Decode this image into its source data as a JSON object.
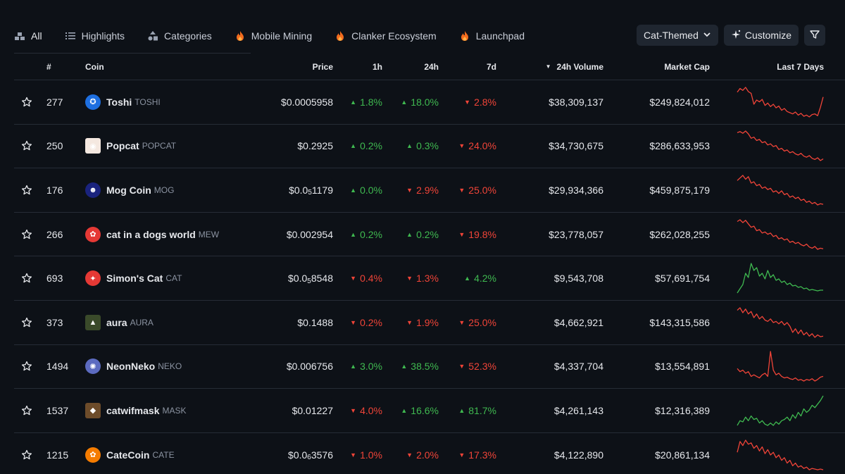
{
  "nav": {
    "tabs": [
      {
        "label": "All",
        "icon": "pyramid-blocks-icon"
      },
      {
        "label": "Highlights",
        "icon": "list-numbered-icon"
      },
      {
        "label": "Categories",
        "icon": "shapes-icon"
      },
      {
        "label": "Mobile Mining",
        "icon": "fire-icon"
      },
      {
        "label": "Clanker Ecosystem",
        "icon": "fire-icon"
      },
      {
        "label": "Launchpad",
        "icon": "fire-icon"
      }
    ],
    "category_select": "Cat-Themed",
    "customize_label": "Customize",
    "filter_icon": "filter-icon"
  },
  "table": {
    "headers": {
      "rank": "#",
      "coin": "Coin",
      "price": "Price",
      "h1": "1h",
      "h24": "24h",
      "d7": "7d",
      "volume": "24h Volume",
      "mcap": "Market Cap",
      "spark": "Last 7 Days"
    },
    "rows": [
      {
        "rank": "277",
        "name": "Toshi",
        "symbol": "TOSHI",
        "price_pre": "$0.0005958",
        "price_sub": "",
        "price_post": "",
        "h1": "1.8%",
        "h1_dir": "up",
        "h24": "18.0%",
        "h24_dir": "up",
        "d7": "2.8%",
        "d7_dir": "down",
        "volume": "$38,309,137",
        "mcap": "$249,824,012",
        "logo_color": "#1e6fe0",
        "logo_glyph": "✪",
        "spark_dir": "down",
        "spark": [
          60,
          66,
          63,
          68,
          61,
          58,
          40,
          47,
          44,
          48,
          38,
          42,
          36,
          40,
          34,
          37,
          30,
          33,
          28,
          26,
          24,
          27,
          22,
          25,
          20,
          22,
          19,
          23,
          24,
          21,
          35,
          52
        ]
      },
      {
        "rank": "250",
        "name": "Popcat",
        "symbol": "POPCAT",
        "price_pre": "$0.2925",
        "price_sub": "",
        "price_post": "",
        "h1": "0.2%",
        "h1_dir": "up",
        "h24": "0.3%",
        "h24_dir": "up",
        "d7": "24.0%",
        "d7_dir": "down",
        "volume": "$34,730,675",
        "mcap": "$286,633,953",
        "logo_color": "#f4e8e0",
        "logo_glyph": "◉",
        "spark_dir": "down",
        "spark": [
          80,
          82,
          79,
          83,
          78,
          70,
          72,
          66,
          68,
          62,
          64,
          58,
          60,
          55,
          57,
          50,
          52,
          47,
          49,
          44,
          46,
          42,
          40,
          43,
          38,
          36,
          39,
          34,
          32,
          35,
          30,
          33
        ]
      },
      {
        "rank": "176",
        "name": "Mog Coin",
        "symbol": "MOG",
        "price_pre": "$0.0",
        "price_sub": "5",
        "price_post": "1179",
        "h1": "0.0%",
        "h1_dir": "up",
        "h24": "2.9%",
        "h24_dir": "down",
        "d7": "25.0%",
        "d7_dir": "down",
        "volume": "$29,934,366",
        "mcap": "$459,875,179",
        "logo_color": "#1a237e",
        "logo_glyph": "☻",
        "spark_dir": "down",
        "spark": [
          78,
          82,
          86,
          80,
          84,
          74,
          76,
          70,
          72,
          66,
          68,
          64,
          66,
          60,
          62,
          58,
          62,
          56,
          58,
          52,
          54,
          50,
          52,
          47,
          49,
          44,
          46,
          42,
          44,
          40,
          42,
          41
        ]
      },
      {
        "rank": "266",
        "name": "cat in a dogs world",
        "symbol": "MEW",
        "price_pre": "$0.002954",
        "price_sub": "",
        "price_post": "",
        "h1": "0.2%",
        "h1_dir": "up",
        "h24": "0.2%",
        "h24_dir": "up",
        "d7": "19.8%",
        "d7_dir": "down",
        "volume": "$23,778,057",
        "mcap": "$262,028,255",
        "logo_color": "#e53935",
        "logo_glyph": "✿",
        "spark_dir": "down",
        "spark": [
          82,
          85,
          80,
          84,
          78,
          72,
          74,
          66,
          68,
          62,
          64,
          60,
          62,
          56,
          58,
          52,
          54,
          50,
          52,
          46,
          48,
          44,
          46,
          42,
          40,
          43,
          38,
          36,
          39,
          34,
          36,
          35
        ]
      },
      {
        "rank": "693",
        "name": "Simon's Cat",
        "symbol": "CAT",
        "price_pre": "$0.0",
        "price_sub": "5",
        "price_post": "8548",
        "h1": "0.4%",
        "h1_dir": "down",
        "h24": "1.3%",
        "h24_dir": "down",
        "d7": "4.2%",
        "d7_dir": "up",
        "volume": "$9,543,708",
        "mcap": "$57,691,754",
        "logo_color": "#e53935",
        "logo_glyph": "✦",
        "spark_dir": "up",
        "spark": [
          20,
          26,
          32,
          48,
          42,
          62,
          52,
          56,
          44,
          48,
          40,
          52,
          42,
          46,
          38,
          40,
          35,
          37,
          32,
          34,
          30,
          31,
          28,
          29,
          26,
          27,
          24,
          25,
          24,
          23,
          24,
          24
        ]
      },
      {
        "rank": "373",
        "name": "aura",
        "symbol": "AURA",
        "price_pre": "$0.1488",
        "price_sub": "",
        "price_post": "",
        "h1": "0.2%",
        "h1_dir": "down",
        "h24": "1.9%",
        "h24_dir": "down",
        "d7": "25.0%",
        "d7_dir": "down",
        "volume": "$4,662,921",
        "mcap": "$143,315,586",
        "logo_color": "#3a4a2a",
        "logo_glyph": "▲",
        "spark_dir": "down",
        "spark": [
          76,
          80,
          72,
          78,
          70,
          74,
          64,
          70,
          62,
          66,
          60,
          58,
          62,
          56,
          58,
          54,
          58,
          52,
          56,
          50,
          40,
          46,
          38,
          44,
          36,
          40,
          34,
          38,
          32,
          36,
          33,
          34
        ]
      },
      {
        "rank": "1494",
        "name": "NeonNeko",
        "symbol": "NEKO",
        "price_pre": "$0.006756",
        "price_sub": "",
        "price_post": "",
        "h1": "3.0%",
        "h1_dir": "up",
        "h24": "38.5%",
        "h24_dir": "up",
        "d7": "52.3%",
        "d7_dir": "down",
        "volume": "$4,337,704",
        "mcap": "$13,554,891",
        "logo_color": "#5c6bc0",
        "logo_glyph": "✺",
        "spark_dir": "down",
        "spark": [
          44,
          40,
          42,
          38,
          40,
          34,
          36,
          34,
          32,
          36,
          38,
          34,
          66,
          42,
          36,
          38,
          34,
          32,
          33,
          31,
          30,
          32,
          29,
          30,
          28,
          30,
          29,
          31,
          28,
          30,
          33,
          34
        ]
      },
      {
        "rank": "1537",
        "name": "catwifmask",
        "symbol": "MASK",
        "price_pre": "$0.01227",
        "price_sub": "",
        "price_post": "",
        "h1": "4.0%",
        "h1_dir": "down",
        "h24": "16.6%",
        "h24_dir": "up",
        "d7": "81.7%",
        "d7_dir": "up",
        "volume": "$4,261,143",
        "mcap": "$12,316,389",
        "logo_color": "#6d4c2a",
        "logo_glyph": "◆",
        "spark_dir": "up",
        "spark": [
          22,
          30,
          28,
          36,
          30,
          38,
          32,
          34,
          26,
          30,
          24,
          22,
          26,
          22,
          28,
          24,
          30,
          32,
          36,
          30,
          40,
          34,
          44,
          38,
          50,
          44,
          48,
          56,
          52,
          58,
          64,
          72
        ]
      },
      {
        "rank": "1215",
        "name": "CateCoin",
        "symbol": "CATE",
        "price_pre": "$0.0",
        "price_sub": "6",
        "price_post": "3576",
        "h1": "1.0%",
        "h1_dir": "down",
        "h24": "2.0%",
        "h24_dir": "down",
        "d7": "17.3%",
        "d7_dir": "down",
        "volume": "$4,122,890",
        "mcap": "$20,861,134",
        "logo_color": "#f57c00",
        "logo_glyph": "✿",
        "spark_dir": "down",
        "spark": [
          60,
          76,
          70,
          78,
          72,
          74,
          66,
          70,
          62,
          68,
          58,
          64,
          56,
          60,
          52,
          56,
          48,
          52,
          44,
          48,
          40,
          44,
          38,
          40,
          36,
          38,
          34,
          36,
          35,
          34,
          35,
          34
        ]
      }
    ]
  },
  "colors": {
    "up": "#3fb950",
    "down": "#f04438"
  }
}
